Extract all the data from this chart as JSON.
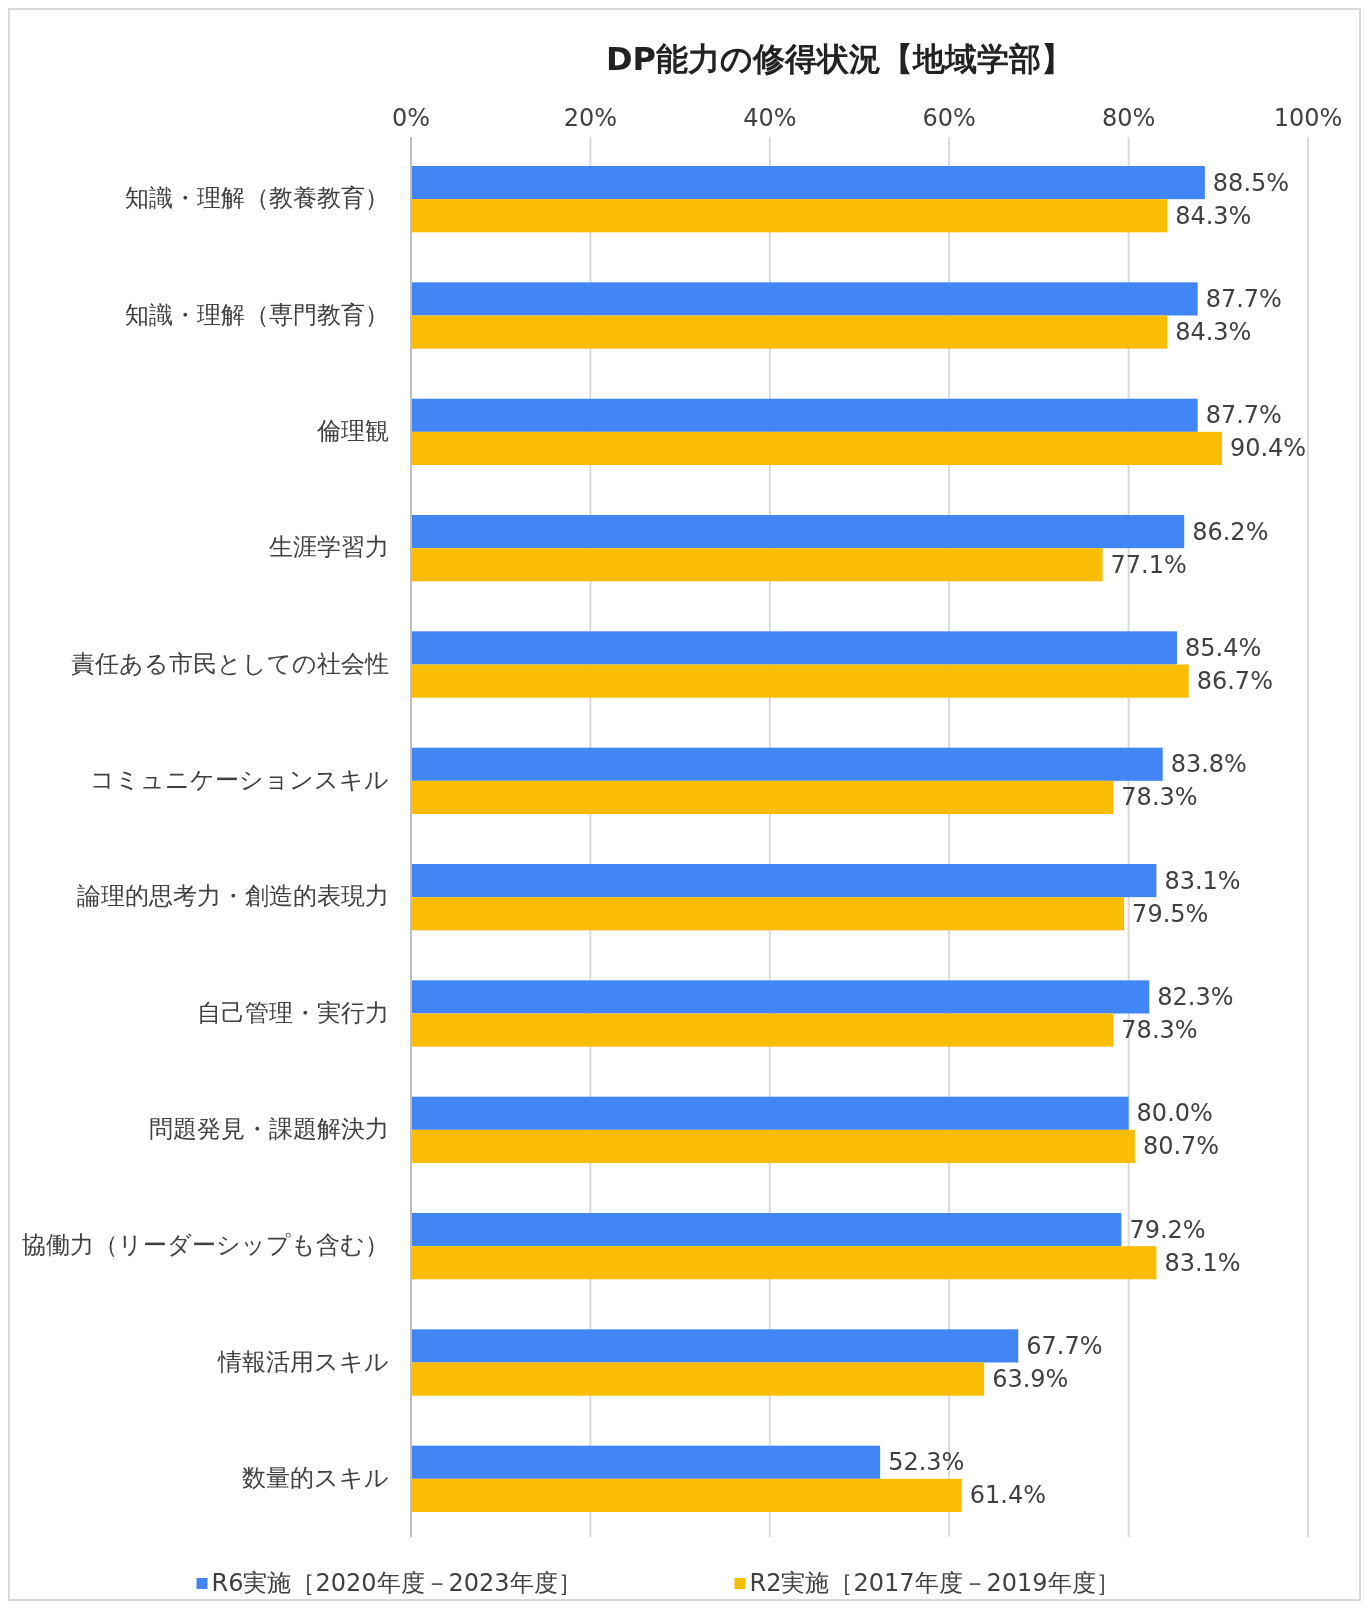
{
  "chart_data": {
    "type": "bar",
    "orientation": "horizontal",
    "title": "DP能力の修得状況【地域学部】",
    "categories": [
      "知識・理解（教養教育）",
      "知識・理解（専門教育）",
      "倫理観",
      "生涯学習力",
      "責任ある市民としての社会性",
      "コミュニケーションスキル",
      "論理的思考力・創造的表現力",
      "自己管理・実行力",
      "問題発見・課題解決力",
      "協働力（リーダーシップも含む）",
      "情報活用スキル",
      "数量的スキル"
    ],
    "series": [
      {
        "name": "R6実施［2020年度－2023年度］",
        "color": "#4285f4",
        "values": [
          88.5,
          87.7,
          87.7,
          86.2,
          85.4,
          83.8,
          83.1,
          82.3,
          80.0,
          79.2,
          67.7,
          52.3
        ],
        "value_labels": [
          "88.5%",
          "87.7%",
          "87.7%",
          "86.2%",
          "85.4%",
          "83.8%",
          "83.1%",
          "82.3%",
          "80.0%",
          "79.2%",
          "67.7%",
          "52.3%"
        ]
      },
      {
        "name": "R2実施［2017年度－2019年度］",
        "color": "#fbbc04",
        "values": [
          84.3,
          84.3,
          90.4,
          77.1,
          86.7,
          78.3,
          79.5,
          78.3,
          80.7,
          83.1,
          63.9,
          61.4
        ],
        "value_labels": [
          "84.3%",
          "84.3%",
          "90.4%",
          "77.1%",
          "86.7%",
          "78.3%",
          "79.5%",
          "78.3%",
          "80.7%",
          "83.1%",
          "63.9%",
          "61.4%"
        ]
      }
    ],
    "xlim": [
      0,
      100
    ],
    "xticks": [
      {
        "value": 0,
        "label": "0%"
      },
      {
        "value": 20,
        "label": "20%"
      },
      {
        "value": 40,
        "label": "40%"
      },
      {
        "value": 60,
        "label": "60%"
      },
      {
        "value": 80,
        "label": "80%"
      },
      {
        "value": 100,
        "label": "100%"
      }
    ],
    "grid": "x",
    "legend": "bottom"
  }
}
